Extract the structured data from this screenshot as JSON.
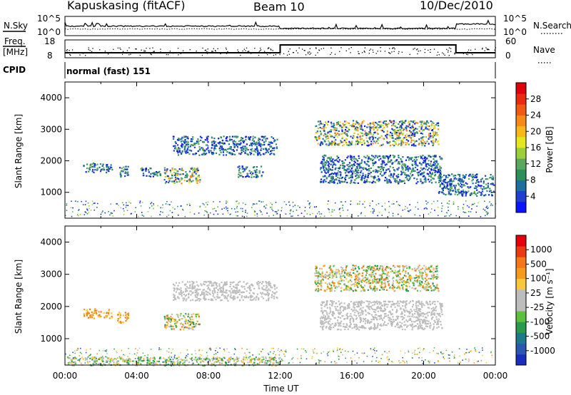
{
  "header": {
    "station": "Kapuskasing (fitACF)",
    "beam": "Beam 10",
    "date": "10/Dec/2010"
  },
  "top_panels": {
    "nsky_label": "N.Sky",
    "nsky_ticks": [
      "10^5",
      "10^0"
    ],
    "nsearch_label": "N.Search",
    "nsearch_ticks": [
      "10^5",
      "10^0"
    ],
    "freq_label": "Freq.",
    "freq_unit": "[MHz]",
    "freq_ticks": [
      "18",
      "8"
    ],
    "nave_label": "Nave",
    "nave_ticks": [
      "60",
      "0"
    ],
    "cpid_label": "CPID",
    "cpid_text": "normal (fast) 151"
  },
  "chart_data": [
    {
      "type": "heatmap",
      "name": "power",
      "ylabel": "Slant Range [km]",
      "xlabel": "",
      "xlim_hours": [
        0,
        24
      ],
      "ylim": [
        180,
        4500
      ],
      "y_ticks": [
        "4000",
        "3000",
        "2000",
        "1000"
      ],
      "colorbar": {
        "label": "Power [dB]",
        "ticks": [
          "28",
          "24",
          "20",
          "16",
          "12",
          "8",
          "4"
        ],
        "colors": [
          "#0a14ff",
          "#1e3fd0",
          "#1d6fa0",
          "#2f8f5a",
          "#5aa860",
          "#9bcf3a",
          "#e6e61e",
          "#f8b81a",
          "#f58a17",
          "#f05a14",
          "#ea2a10",
          "#e0000c"
        ]
      },
      "echo_regions": [
        {
          "t_start": 1.0,
          "t_end": 2.6,
          "r_min": 1650,
          "r_max": 1950,
          "level": "medium"
        },
        {
          "t_start": 2.9,
          "t_end": 3.5,
          "r_min": 1500,
          "r_max": 1850,
          "level": "medium"
        },
        {
          "t_start": 4.2,
          "t_end": 5.3,
          "r_min": 1500,
          "r_max": 1800,
          "level": "medium"
        },
        {
          "t_start": 5.5,
          "t_end": 7.5,
          "r_min": 1300,
          "r_max": 1800,
          "level": "high"
        },
        {
          "t_start": 6.0,
          "t_end": 11.8,
          "r_min": 2200,
          "r_max": 2800,
          "level": "medium"
        },
        {
          "t_start": 9.6,
          "t_end": 11.0,
          "r_min": 1500,
          "r_max": 1850,
          "level": "medium"
        },
        {
          "t_start": 13.9,
          "t_end": 20.8,
          "r_min": 2500,
          "r_max": 3300,
          "level": "high"
        },
        {
          "t_start": 14.2,
          "t_end": 21.0,
          "r_min": 1300,
          "r_max": 2200,
          "level": "medium"
        },
        {
          "t_start": 20.8,
          "t_end": 23.9,
          "r_min": 900,
          "r_max": 1600,
          "level": "medium"
        }
      ]
    },
    {
      "type": "heatmap",
      "name": "velocity",
      "ylabel": "Slant Range [km]",
      "xlabel": "Time UT",
      "x_ticks": [
        "00:00",
        "04:00",
        "08:00",
        "12:00",
        "16:00",
        "20:00",
        "00:00"
      ],
      "xlim_hours": [
        0,
        24
      ],
      "ylim": [
        180,
        4500
      ],
      "y_ticks": [
        "4000",
        "3000",
        "2000",
        "1000"
      ],
      "colorbar": {
        "label": "Velocity [m s⁻¹]",
        "ticks": [
          "1000",
          "500",
          "100",
          "25",
          "-25",
          "-100",
          "-500",
          "-1000"
        ],
        "colors": [
          "#1a2dbf",
          "#2a58b0",
          "#1e7a8a",
          "#2a9b4a",
          "#5cc03a",
          "#bdbdbd",
          "#bdbdbd",
          "#f7c73c",
          "#f59a1c",
          "#f2781a",
          "#ea3a12",
          "#e3000c"
        ]
      },
      "echo_regions": [
        {
          "t_start": 1.0,
          "t_end": 2.6,
          "r_min": 1650,
          "r_max": 1950,
          "level": "away"
        },
        {
          "t_start": 2.9,
          "t_end": 3.5,
          "r_min": 1500,
          "r_max": 1850,
          "level": "away"
        },
        {
          "t_start": 5.5,
          "t_end": 7.5,
          "r_min": 1300,
          "r_max": 1800,
          "level": "mixed"
        },
        {
          "t_start": 6.0,
          "t_end": 11.8,
          "r_min": 2200,
          "r_max": 2800,
          "level": "ground"
        },
        {
          "t_start": 13.9,
          "t_end": 20.8,
          "r_min": 2500,
          "r_max": 3300,
          "level": "mixed"
        },
        {
          "t_start": 14.2,
          "t_end": 21.0,
          "r_min": 1300,
          "r_max": 2200,
          "level": "ground"
        },
        {
          "t_start": 0.0,
          "t_end": 12.0,
          "r_min": 180,
          "r_max": 450,
          "level": "slow"
        }
      ]
    }
  ]
}
